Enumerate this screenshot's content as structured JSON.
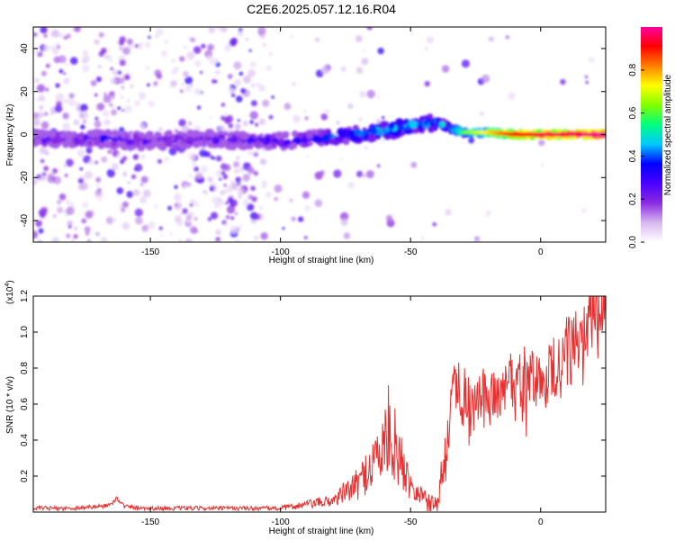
{
  "title": "C2E6.2025.057.12.16.R04",
  "chart_data": [
    {
      "type": "heatmap",
      "xlabel": "Height of straight line (km)",
      "ylabel": "Frequency (Hz)",
      "xlim": [
        -195,
        25
      ],
      "ylim": [
        -50,
        50
      ],
      "xticks": [
        -150,
        -100,
        -50,
        0
      ],
      "yticks": [
        -40,
        -20,
        0,
        20,
        40
      ],
      "grid": false,
      "colorbar": {
        "label": "Normalized spectral amplitude",
        "range": [
          0,
          1
        ],
        "ticks": [
          "0.0",
          "0.2",
          "0.4",
          "0.6",
          "0.8"
        ],
        "colors": [
          "#ffffff",
          "#d8b8f0",
          "#8a2be2",
          "#4b00ff",
          "#0000ff",
          "#00c8ff",
          "#00ff80",
          "#80ff00",
          "#ffff00",
          "#ff8000",
          "#ff0000",
          "#ff00a0"
        ]
      },
      "ridge": {
        "x": [
          -195,
          -170,
          -150,
          -130,
          -110,
          -100,
          -90,
          -80,
          -70,
          -60,
          -50,
          -45,
          -40,
          -35,
          -30,
          -20,
          -10,
          0,
          10,
          25
        ],
        "y": [
          -2,
          -2,
          -3,
          -2,
          -3,
          -3,
          -2,
          -1,
          0,
          2,
          4,
          5,
          6,
          3,
          1,
          1,
          0,
          0,
          0,
          0
        ],
        "amplitude": [
          0.3,
          0.35,
          0.3,
          0.3,
          0.35,
          0.35,
          0.4,
          0.45,
          0.5,
          0.55,
          0.5,
          0.5,
          0.5,
          0.55,
          0.6,
          0.75,
          0.9,
          0.95,
          0.95,
          1.0
        ]
      }
    },
    {
      "type": "line",
      "xlabel": "Height of straight line (km)",
      "ylabel": "SNR (10 * v/v)",
      "y_multiplier": "(x10^4)",
      "y_multiplier_base": "(x10",
      "y_multiplier_exp": "4",
      "y_multiplier_close": ")",
      "xlim": [
        -195,
        25
      ],
      "ylim": [
        0,
        1.2
      ],
      "xticks": [
        -150,
        -100,
        -50,
        0
      ],
      "yticks": [
        "0.2",
        "0.4",
        "0.6",
        "0.8",
        "1.0",
        "1.2"
      ],
      "grid": false,
      "color": "#e83030",
      "x": [
        -195,
        -180,
        -170,
        -165,
        -163,
        -160,
        -150,
        -140,
        -120,
        -100,
        -90,
        -80,
        -70,
        -65,
        -60,
        -58,
        -55,
        -50,
        -45,
        -40,
        -38,
        -35,
        -33,
        -30,
        -25,
        -20,
        -15,
        -10,
        -5,
        0,
        5,
        10,
        15,
        20,
        25
      ],
      "y": [
        0.02,
        0.02,
        0.03,
        0.04,
        0.08,
        0.03,
        0.02,
        0.02,
        0.02,
        0.02,
        0.04,
        0.06,
        0.15,
        0.25,
        0.35,
        0.45,
        0.3,
        0.15,
        0.08,
        0.05,
        0.2,
        0.5,
        0.75,
        0.62,
        0.6,
        0.62,
        0.65,
        0.7,
        0.72,
        0.72,
        0.78,
        0.85,
        0.95,
        1.02,
        1.08
      ]
    }
  ]
}
